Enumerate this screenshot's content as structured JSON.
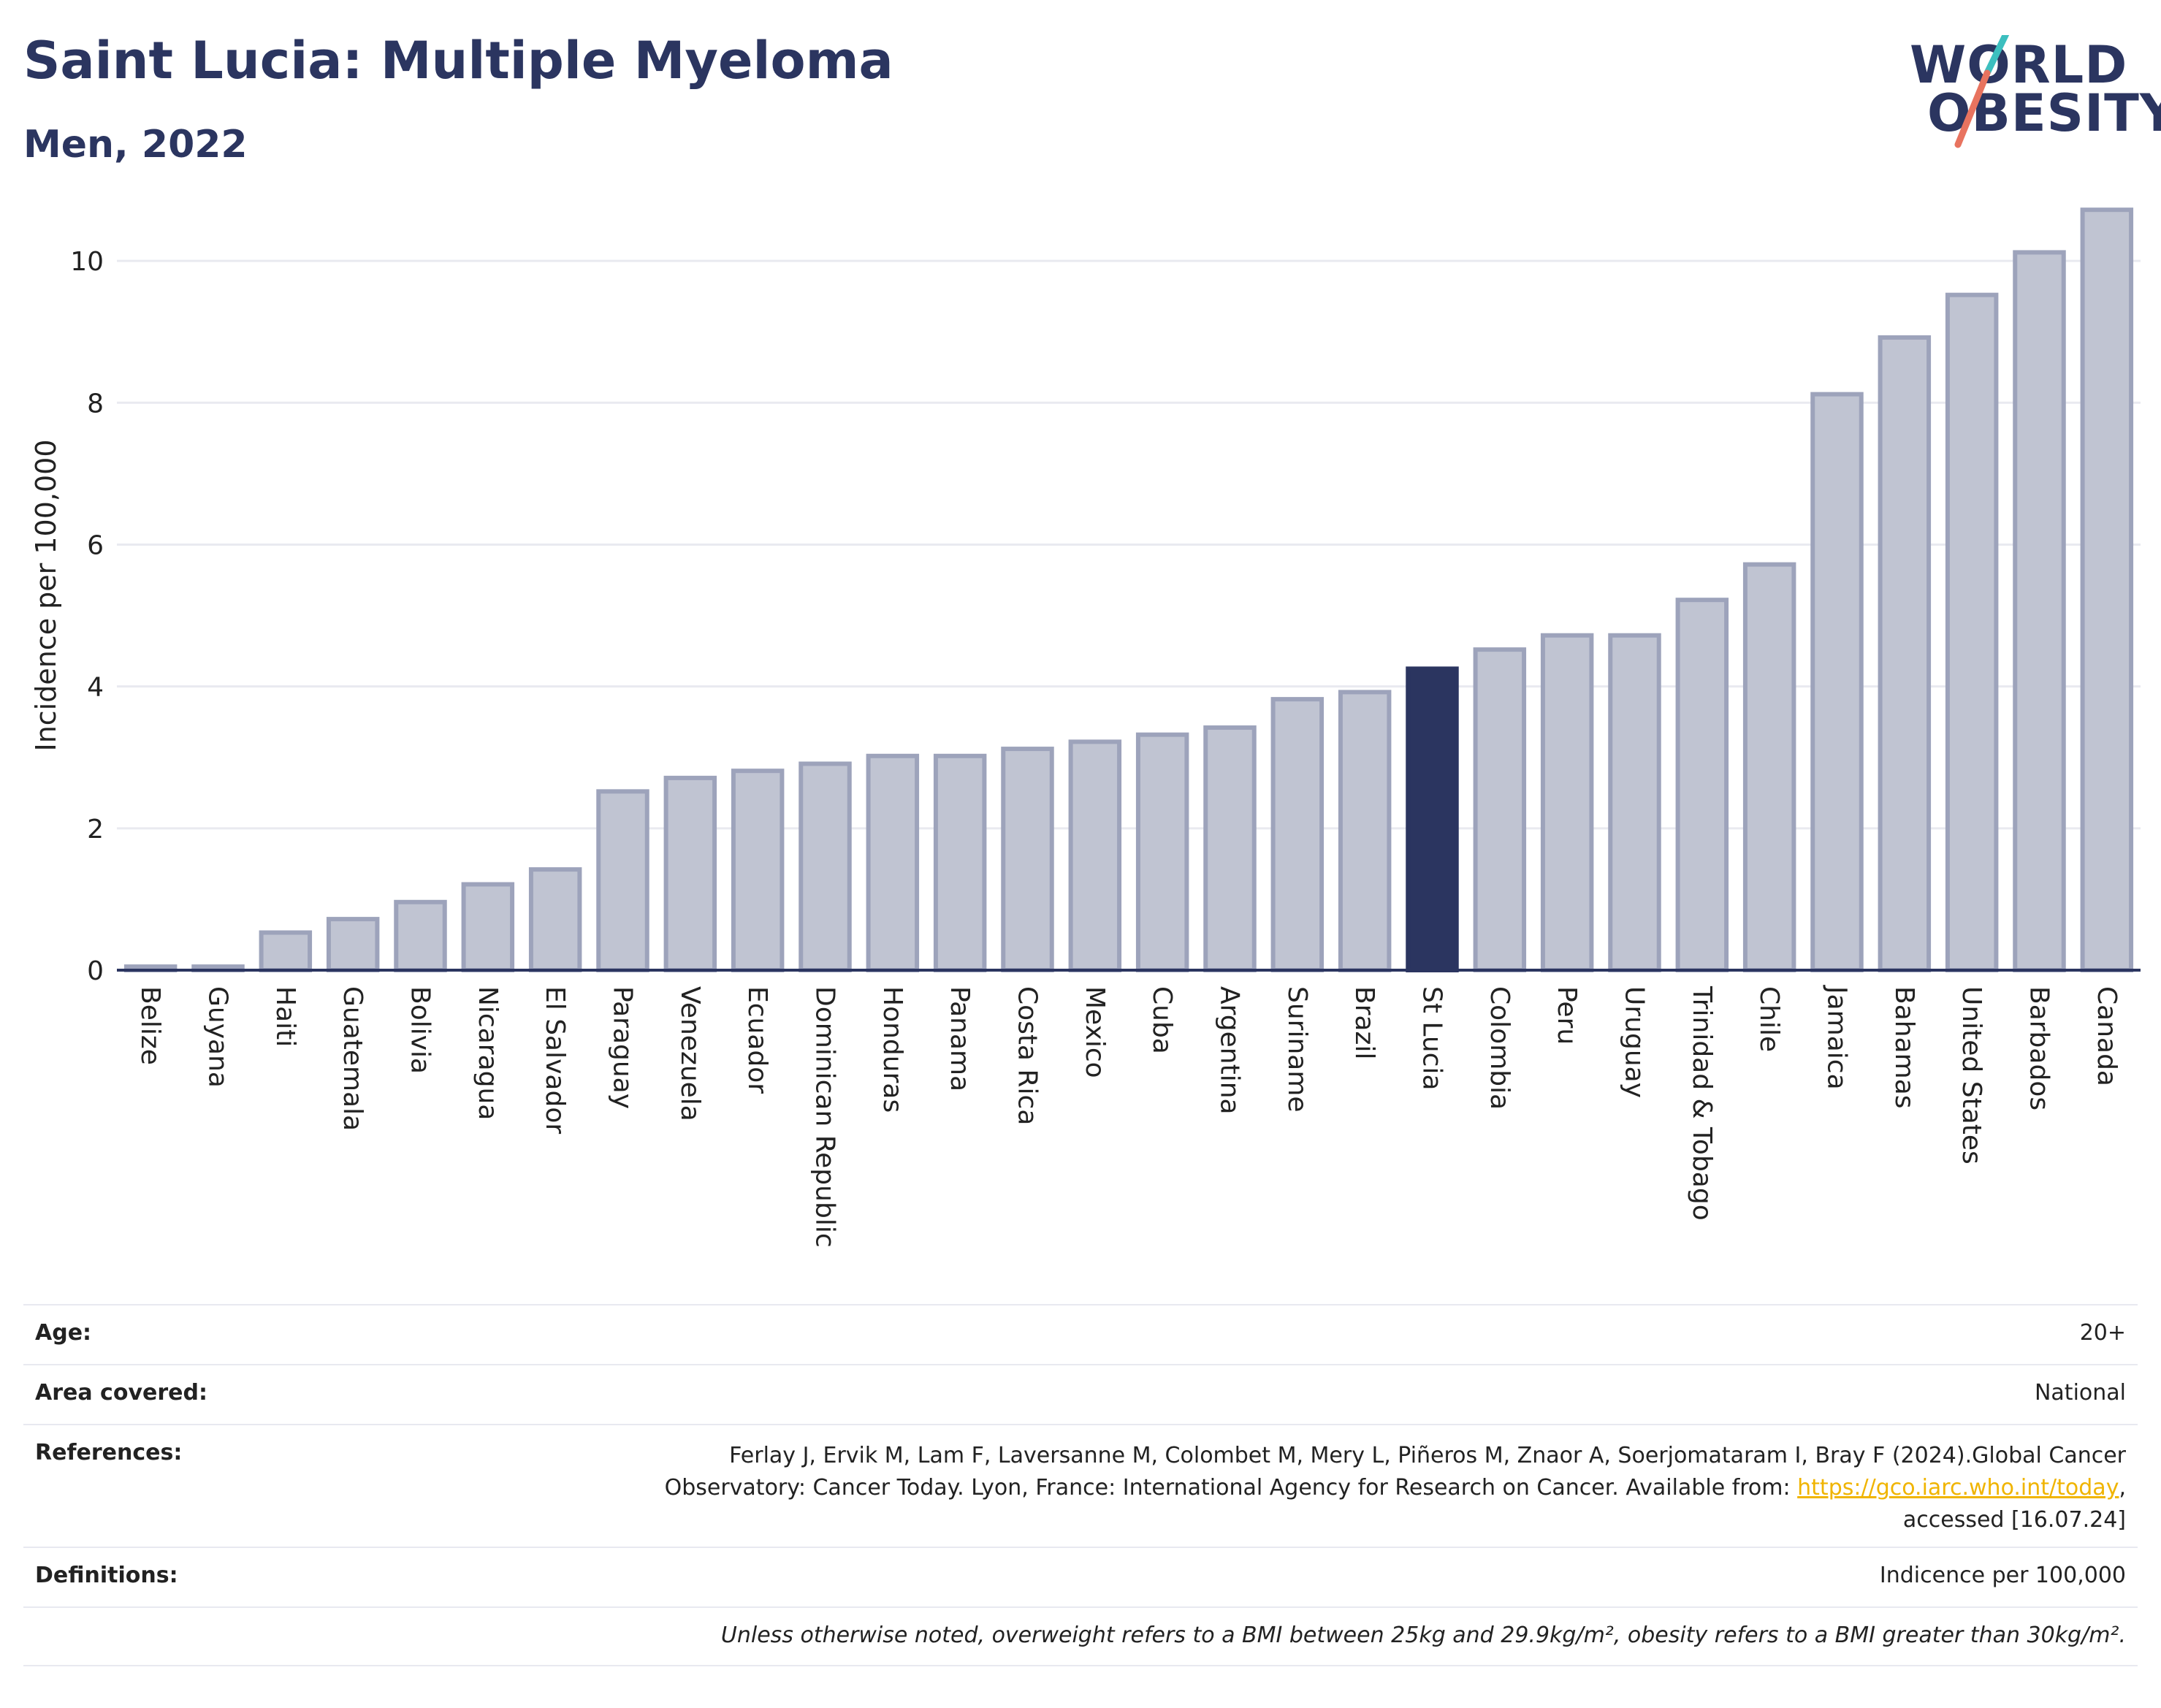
{
  "title": "Saint Lucia: Multiple Myeloma",
  "subtitle": "Men, 2022",
  "logo": {
    "line1": "WORLD",
    "line2": "OBESITY"
  },
  "colors": {
    "bar": "#c0c4d2",
    "bar_edge": "#9da3bb",
    "highlight": "#2b3560",
    "title": "#2b3560",
    "link": "#f0b400"
  },
  "chart_data": {
    "type": "bar",
    "ylabel": "Incidence per 100,000",
    "ylim": [
      0,
      11
    ],
    "yticks": [
      0,
      2,
      4,
      6,
      8,
      10
    ],
    "highlight": "St Lucia",
    "grid": true,
    "categories": [
      "Belize",
      "Guyana",
      "Haiti",
      "Guatemala",
      "Bolivia",
      "Nicaragua",
      "El Salvador",
      "Paraguay",
      "Venezuela",
      "Ecuador",
      "Dominican Republic",
      "Honduras",
      "Panama",
      "Costa Rica",
      "Mexico",
      "Cuba",
      "Argentina",
      "Suriname",
      "Brazil",
      "St Lucia",
      "Colombia",
      "Peru",
      "Uruguay",
      "Trinidad & Tobago",
      "Chile",
      "Jamaica",
      "Bahamas",
      "United States",
      "Barbados",
      "Canada"
    ],
    "values": [
      0.05,
      0.05,
      0.53,
      0.72,
      0.96,
      1.21,
      1.42,
      2.52,
      2.71,
      2.81,
      2.91,
      3.02,
      3.02,
      3.12,
      3.22,
      3.32,
      3.42,
      3.82,
      3.92,
      4.25,
      4.52,
      4.72,
      4.72,
      5.22,
      5.72,
      8.12,
      8.92,
      9.52,
      10.12,
      10.72
    ]
  },
  "info": {
    "age_label": "Age:",
    "age_value": "20+",
    "area_label": "Area covered:",
    "area_value": "National",
    "ref_label": "References:",
    "ref_text_1": "Ferlay J, Ervik M, Lam F, Laversanne M, Colombet M, Mery L, Piñeros M, Znaor A, Soerjomataram I, Bray F (2024).Global Cancer",
    "ref_text_2": "Observatory: Cancer Today. Lyon, France: International Agency for Research on Cancer. Available from:",
    "ref_link": "https://gco.iarc.who.int/today",
    "ref_text_3": "accessed [16.07.24]",
    "def_label": "Definitions:",
    "def_value": "Indicence per 100,000",
    "note": "Unless otherwise noted, overweight refers to a BMI between 25kg and 29.9kg/m², obesity refers to a BMI greater than 30kg/m²."
  }
}
